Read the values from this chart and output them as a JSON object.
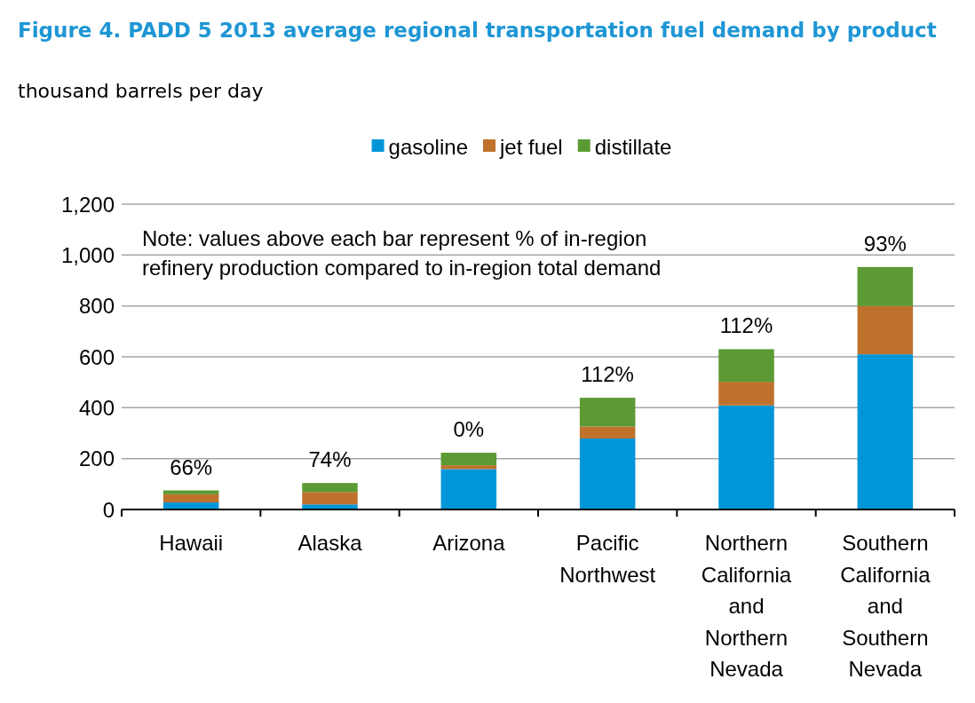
{
  "chart_data": {
    "type": "bar",
    "title": "Figure 4. PADD 5 2013 average regional transportation fuel demand by product",
    "ylabel": "thousand barrels per day",
    "categories": [
      "Hawaii",
      "Alaska",
      "Arizona",
      "Pacific Northwest",
      "Northern California and Northern Nevada",
      "Southern California and Southern Nevada"
    ],
    "series": [
      {
        "name": "gasoline",
        "color": "#0096d8",
        "values": [
          28,
          20,
          159,
          279,
          409,
          610
        ]
      },
      {
        "name": "jet fuel",
        "color": "#be722c",
        "values": [
          32,
          49,
          15,
          47,
          93,
          190
        ]
      },
      {
        "name": "distillate",
        "color": "#5b9a34",
        "values": [
          15,
          35,
          49,
          113,
          128,
          153
        ]
      }
    ],
    "stacked": true,
    "ylim": [
      0,
      1200
    ],
    "yticks": [
      0,
      200,
      400,
      600,
      800,
      {
        "value": 1000,
        "label": "1,000"
      },
      {
        "value": 1200,
        "label": "1,200"
      }
    ],
    "grid": "y",
    "legend": "top",
    "annotations": [
      "Note: values above each bar represent % of in-region refinery production compared to in-region total demand",
      {
        "text": "66%",
        "x": "Hawaii",
        "y": 75
      },
      {
        "text": "74%",
        "x": "Alaska",
        "y": 104
      },
      {
        "text": "0%",
        "x": "Arizona",
        "y": 223
      },
      {
        "text": "112%",
        "x": "Pacific Northwest",
        "y": 439
      },
      {
        "text": "112%",
        "x": "Northern California and Northern Nevada",
        "y": 630
      },
      {
        "text": "93%",
        "x": "Southern California and Southern Nevada",
        "y": 953
      }
    ]
  }
}
